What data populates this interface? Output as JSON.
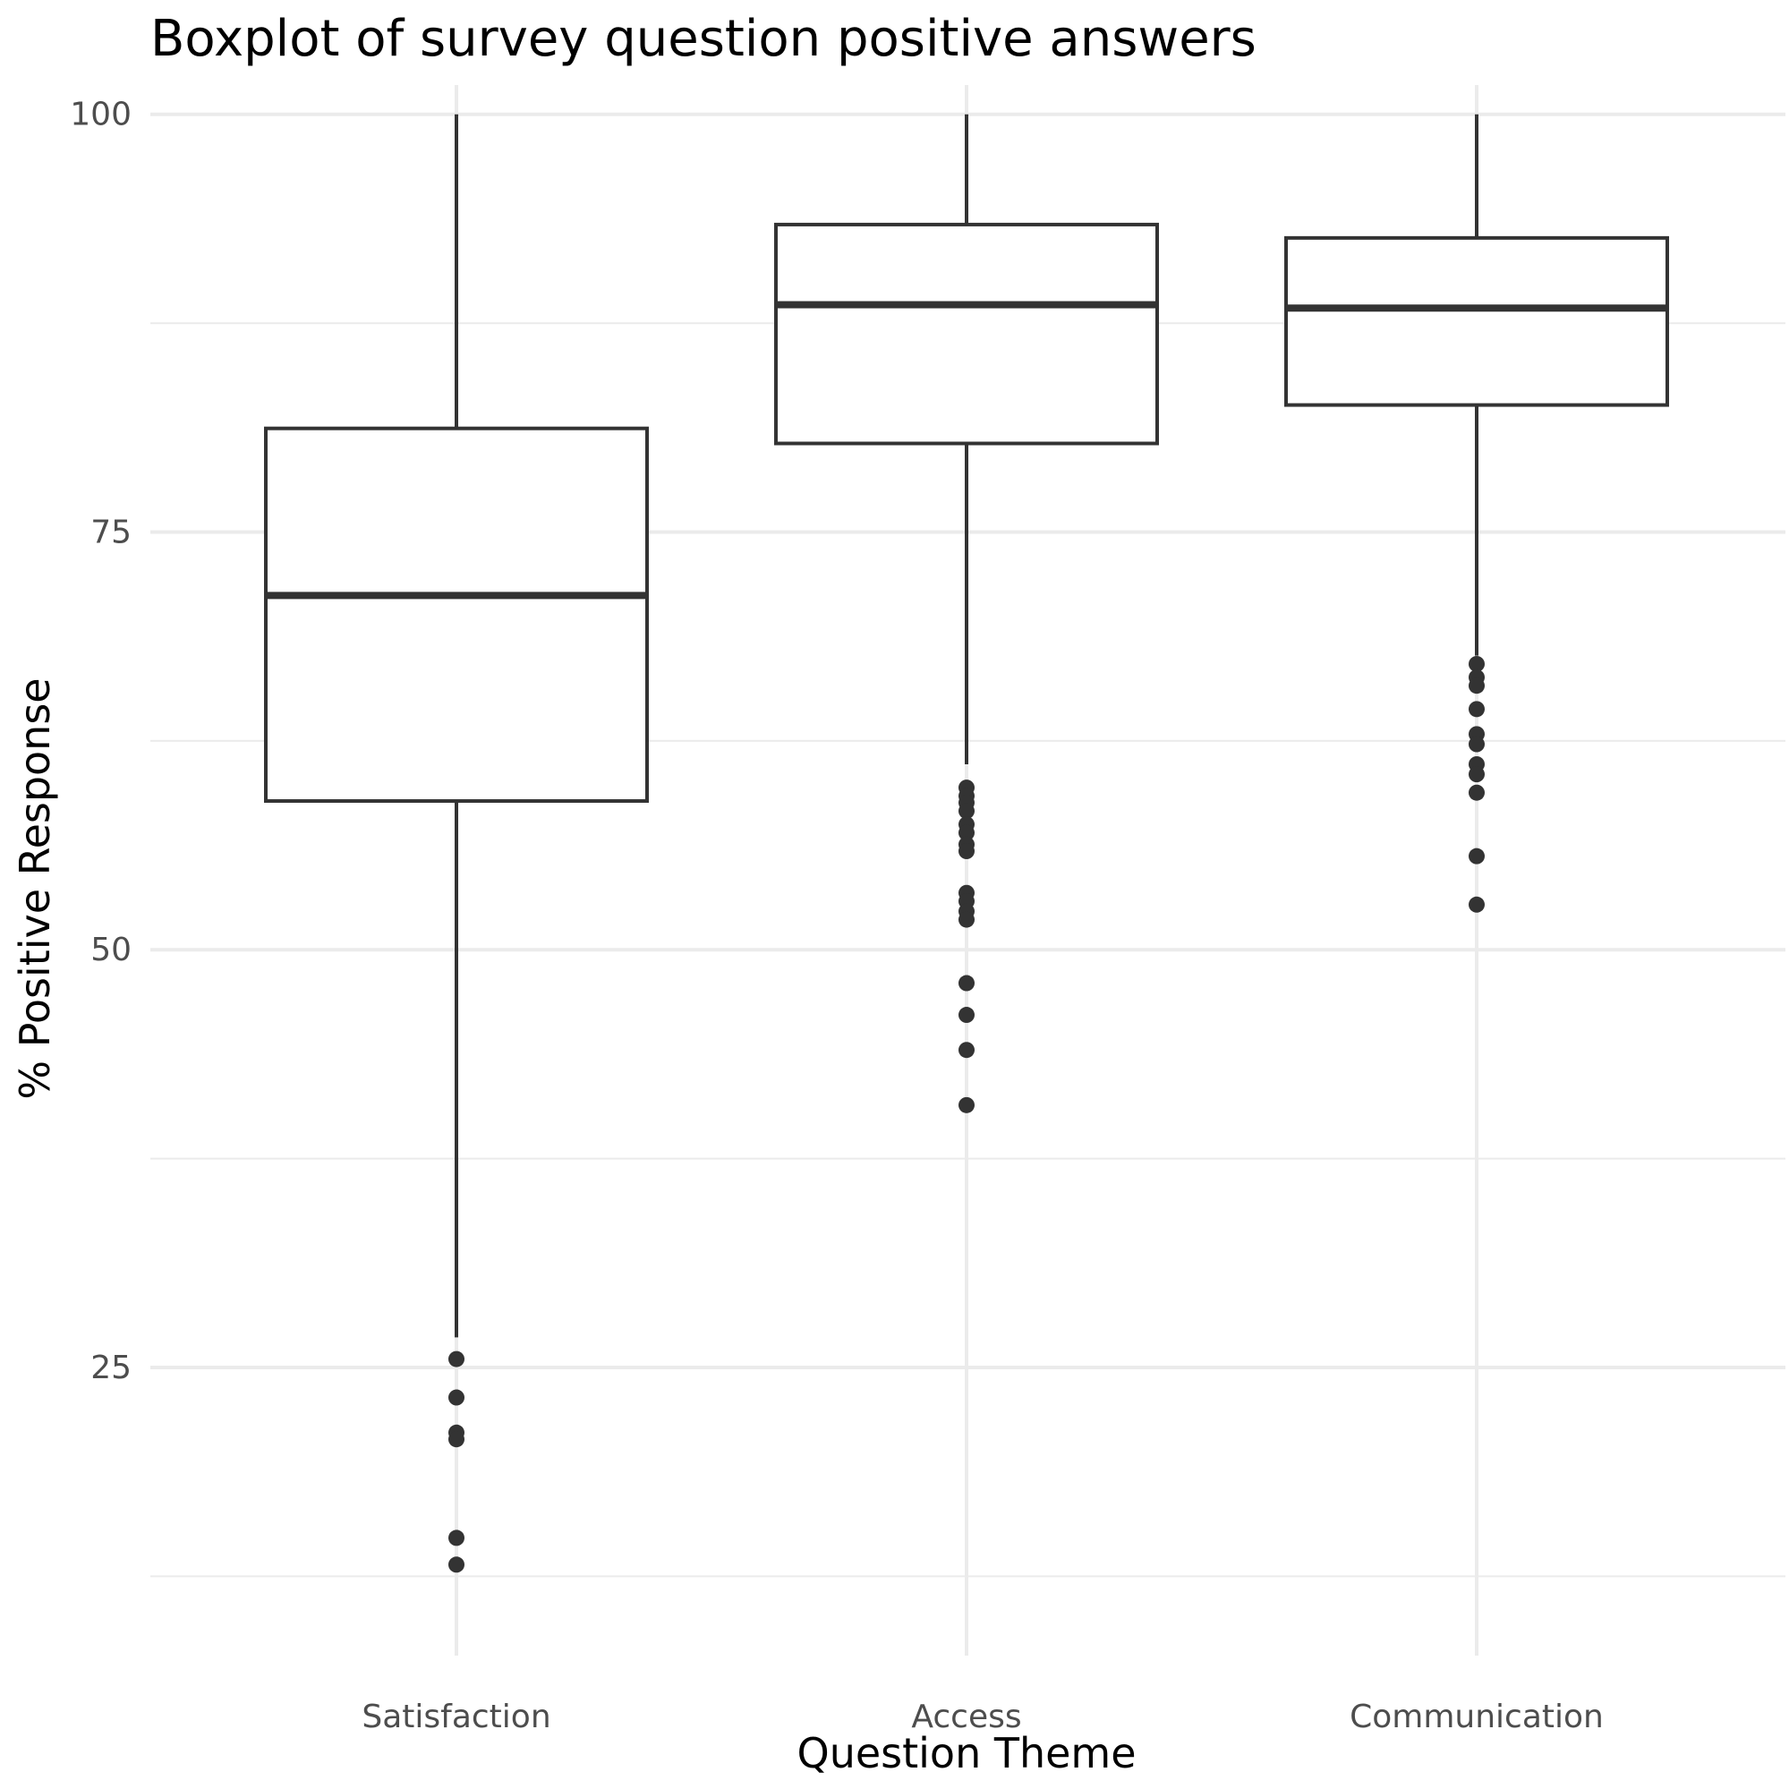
{
  "chart_data": {
    "type": "boxplot",
    "title": "Boxplot of survey question positive answers",
    "xlabel": "Question Theme",
    "ylabel": "% Positive Response",
    "ylim": [
      8,
      104
    ],
    "yticks": [
      25,
      50,
      75,
      100
    ],
    "yminor": [
      12.5,
      37.5,
      62.5,
      87.5
    ],
    "grid": true,
    "categories": [
      "Satisfaction",
      "Access",
      "Communication"
    ],
    "series": [
      {
        "category": "Satisfaction",
        "whisker_low": 26.8,
        "q1": 58.9,
        "median": 71.2,
        "q3": 81.2,
        "whisker_high": 100,
        "outliers": [
          25.5,
          23.2,
          21.1,
          20.7,
          14.8,
          13.2
        ]
      },
      {
        "category": "Access",
        "whisker_low": 61.1,
        "q1": 80.3,
        "median": 88.6,
        "q3": 93.4,
        "whisker_high": 100,
        "outliers": [
          59.7,
          59.2,
          58.8,
          58.3,
          57.5,
          57.0,
          56.3,
          55.9,
          53.4,
          52.9,
          52.3,
          51.8,
          48.0,
          46.1,
          44.0,
          40.7
        ]
      },
      {
        "category": "Communication",
        "whisker_low": 67.6,
        "q1": 82.6,
        "median": 88.4,
        "q3": 92.6,
        "whisker_high": 100,
        "outliers": [
          67.1,
          66.3,
          65.8,
          64.4,
          62.9,
          62.3,
          61.1,
          60.5,
          59.4,
          55.6,
          52.7
        ]
      }
    ]
  }
}
